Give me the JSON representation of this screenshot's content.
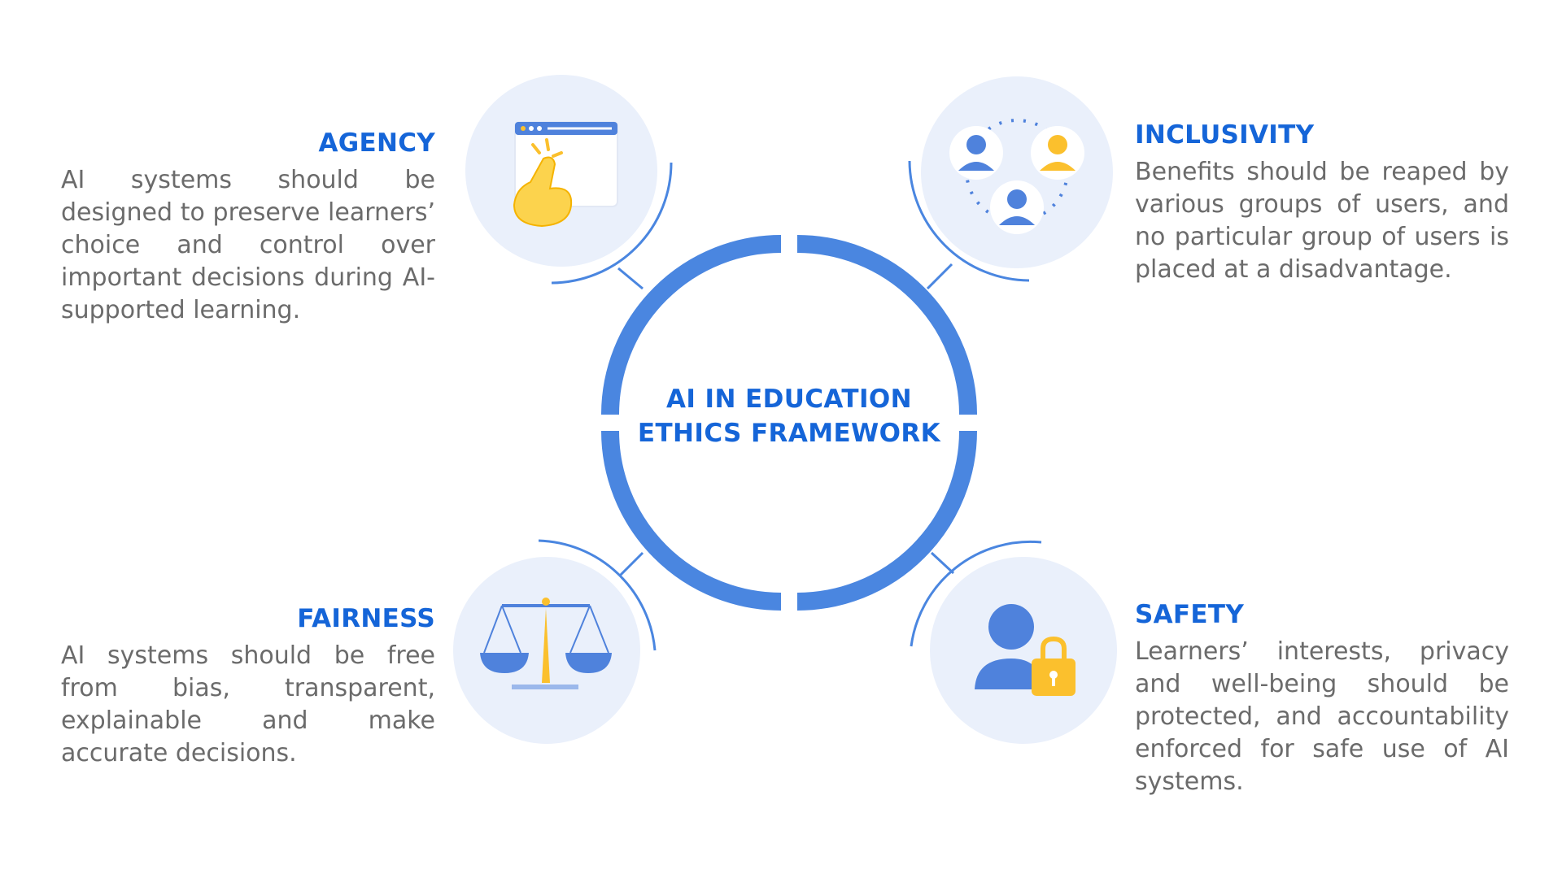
{
  "center": {
    "line1": "AI IN EDUCATION",
    "line2": "ETHICS FRAMEWORK"
  },
  "agency": {
    "title": "AGENCY",
    "text": "AI systems should be designed to preserve learners’ choice and control over important decisions during AI-supported learning.",
    "icon": "click-window-icon"
  },
  "inclusivity": {
    "title": "INCLUSIVITY",
    "text": "Benefits should be reaped by various groups of users, and no particular group of users is placed at a disadvantage.",
    "icon": "users-group-icon"
  },
  "fairness": {
    "title": "FAIRNESS",
    "text": "AI systems should be free from bias, transparent, explainable and make accurate decisions.",
    "icon": "balance-scale-icon"
  },
  "safety": {
    "title": "SAFETY",
    "text": "Learners’ interests, privacy and well-being should be protected, and accountability enforced for safe use of AI systems.",
    "icon": "user-lock-icon"
  },
  "colors": {
    "accent": "#1565d8",
    "ring": "#4a86e0",
    "icon_bg": "#eaf0fb",
    "icon_blue": "#4f82dc",
    "icon_yellow": "#fbc02d",
    "body_text": "#6b6b6b"
  }
}
